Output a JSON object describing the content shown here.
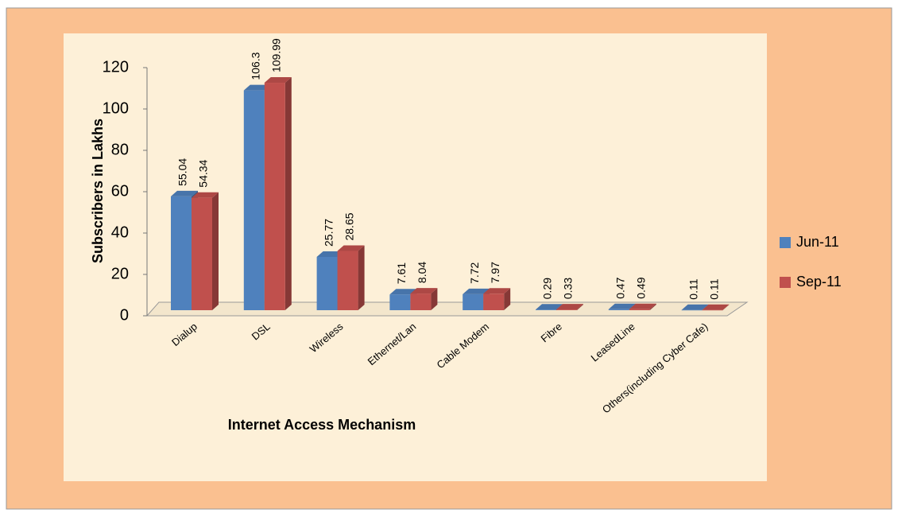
{
  "chart_data": {
    "type": "bar3d",
    "x_label": "Internet Access Mechanism",
    "y_label": "Subscribers in Lakhs",
    "categories": [
      "Dialup",
      "DSL",
      "Wireless",
      "Ethernet/Lan",
      "Cable Modem",
      "Fibre",
      "LeasedLine",
      "Others(including Cyber Cafe)"
    ],
    "series": [
      {
        "name": "Jun-11",
        "color": "#4f81bd",
        "values": [
          55.04,
          106.3,
          25.77,
          7.61,
          7.72,
          0.29,
          0.47,
          0.11
        ]
      },
      {
        "name": "Sep-11",
        "color": "#c0504d",
        "values": [
          54.34,
          109.99,
          28.65,
          8.04,
          7.97,
          0.33,
          0.49,
          0.11
        ]
      }
    ],
    "ylim": [
      0,
      120
    ],
    "yticks": [
      0,
      20,
      40,
      60,
      80,
      100,
      120
    ],
    "legend": "right"
  }
}
